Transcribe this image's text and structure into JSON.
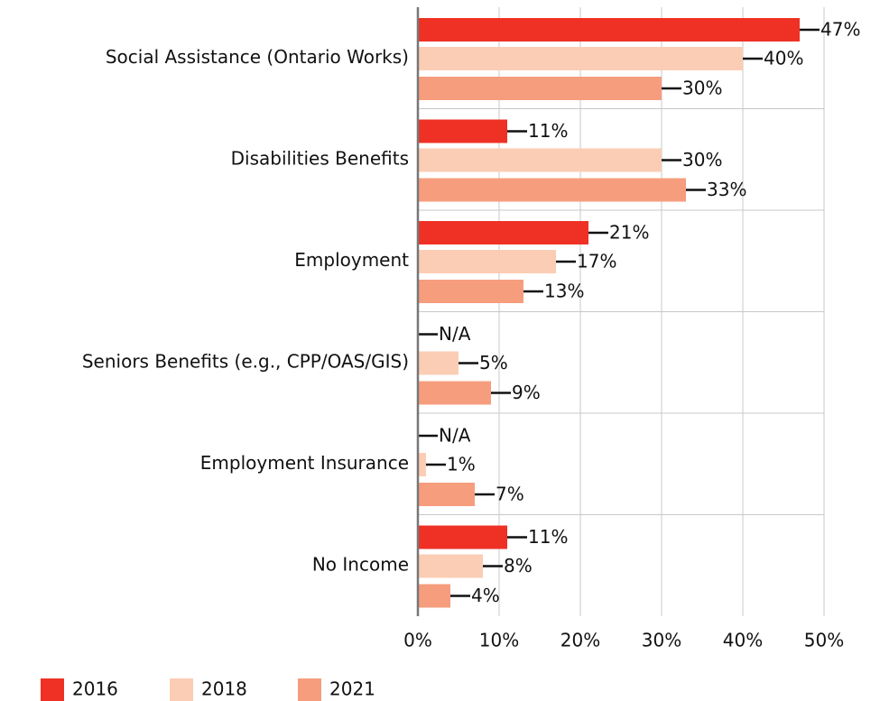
{
  "chart_data": {
    "type": "bar",
    "orientation": "horizontal",
    "categories": [
      "Social Assistance (Ontario Works)",
      "Disabilities Benefits",
      "Employment",
      "Seniors Benefits (e.g., CPP/OAS/GIS)",
      "Employment Insurance",
      "No Income"
    ],
    "series": [
      {
        "name": "2016",
        "color": "#ee3124",
        "values": [
          47,
          11,
          21,
          null,
          null,
          11
        ],
        "value_labels": [
          "47%",
          "11%",
          "21%",
          "N/A",
          "N/A",
          "11%"
        ]
      },
      {
        "name": "2018",
        "color": "#fbcdb4",
        "values": [
          40,
          30,
          17,
          5,
          1,
          8
        ],
        "value_labels": [
          "40%",
          "30%",
          "17%",
          "5%",
          "1%",
          "8%"
        ]
      },
      {
        "name": "2021",
        "color": "#f69d7e",
        "values": [
          30,
          33,
          13,
          9,
          7,
          4
        ],
        "value_labels": [
          "30%",
          "33%",
          "13%",
          "9%",
          "7%",
          "4%"
        ]
      }
    ],
    "xlim": [
      0,
      50
    ],
    "xticks": [
      {
        "value": 0,
        "label": "0%"
      },
      {
        "value": 10,
        "label": "10%"
      },
      {
        "value": 20,
        "label": "20%"
      },
      {
        "value": 30,
        "label": "30%"
      },
      {
        "value": 40,
        "label": "40%"
      },
      {
        "value": 50,
        "label": "50%"
      }
    ],
    "grid": true,
    "legend": "bottom-left"
  }
}
